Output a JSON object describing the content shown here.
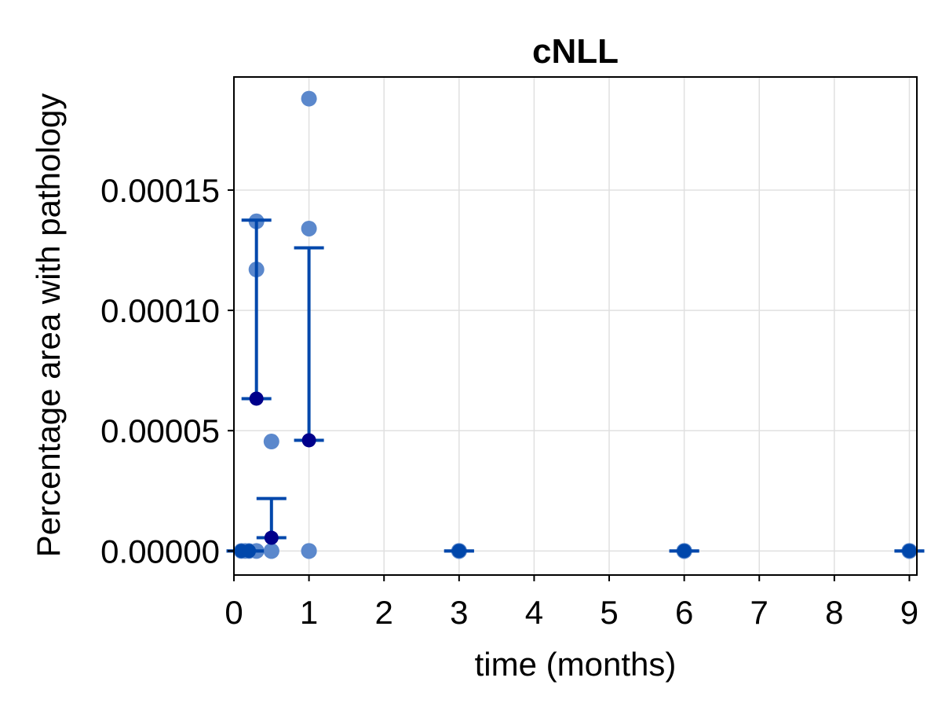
{
  "chart_data": {
    "type": "scatter",
    "title": "cNLL",
    "xlabel": "time (months)",
    "ylabel": "Percentage area with pathology",
    "xlim": [
      0,
      9.1
    ],
    "ylim": [
      -1e-05,
      0.000197
    ],
    "xticks": [
      0,
      1,
      2,
      3,
      4,
      5,
      6,
      7,
      8,
      9
    ],
    "xtick_labels": [
      "0",
      "1",
      "2",
      "3",
      "4",
      "5",
      "6",
      "7",
      "8",
      "9"
    ],
    "yticks": [
      0,
      5e-05,
      0.0001,
      0.00015
    ],
    "ytick_labels": [
      "0.00000",
      "0.00005",
      "0.00010",
      "0.00015"
    ],
    "grid": true,
    "colors": {
      "points": "#5b88cc",
      "error_bars": "#0047ab",
      "mean": "#00008b",
      "axis": "#000000",
      "grid": "#e0e0e0"
    },
    "individual_points": [
      {
        "x": 0.1,
        "y": 0
      },
      {
        "x": 0.15,
        "y": 0
      },
      {
        "x": 0.2,
        "y": 0
      },
      {
        "x": 0.3,
        "y": 0.000137
      },
      {
        "x": 0.3,
        "y": 0.000117
      },
      {
        "x": 0.3,
        "y": 0
      },
      {
        "x": 0.5,
        "y": 4.55e-05
      },
      {
        "x": 0.5,
        "y": 0
      },
      {
        "x": 0.5,
        "y": 0
      },
      {
        "x": 1,
        "y": 0.000188
      },
      {
        "x": 1,
        "y": 0.000134
      },
      {
        "x": 1,
        "y": 0
      },
      {
        "x": 1,
        "y": 0
      },
      {
        "x": 3,
        "y": 0
      },
      {
        "x": 3,
        "y": 0
      },
      {
        "x": 3,
        "y": 0
      },
      {
        "x": 6,
        "y": 0
      },
      {
        "x": 6,
        "y": 0
      },
      {
        "x": 6,
        "y": 0
      },
      {
        "x": 9,
        "y": 0
      },
      {
        "x": 9,
        "y": 0
      },
      {
        "x": 9,
        "y": 0
      }
    ],
    "summary": [
      {
        "x": 0.1,
        "mean": 0,
        "lower": 0,
        "upper": 0
      },
      {
        "x": 0.2,
        "mean": 0,
        "lower": 0,
        "upper": 0
      },
      {
        "x": 0.3,
        "mean": 6.33e-05,
        "lower": 6.33e-05,
        "upper": 0.0001375
      },
      {
        "x": 0.5,
        "mean": 5.5e-06,
        "lower": 5.5e-06,
        "upper": 2.18e-05
      },
      {
        "x": 1,
        "mean": 4.6e-05,
        "lower": 4.6e-05,
        "upper": 0.000126
      },
      {
        "x": 3,
        "mean": 0,
        "lower": 0,
        "upper": 0
      },
      {
        "x": 6,
        "mean": 0,
        "lower": 0,
        "upper": 0
      },
      {
        "x": 9,
        "mean": 0,
        "lower": 0,
        "upper": 0
      }
    ]
  }
}
